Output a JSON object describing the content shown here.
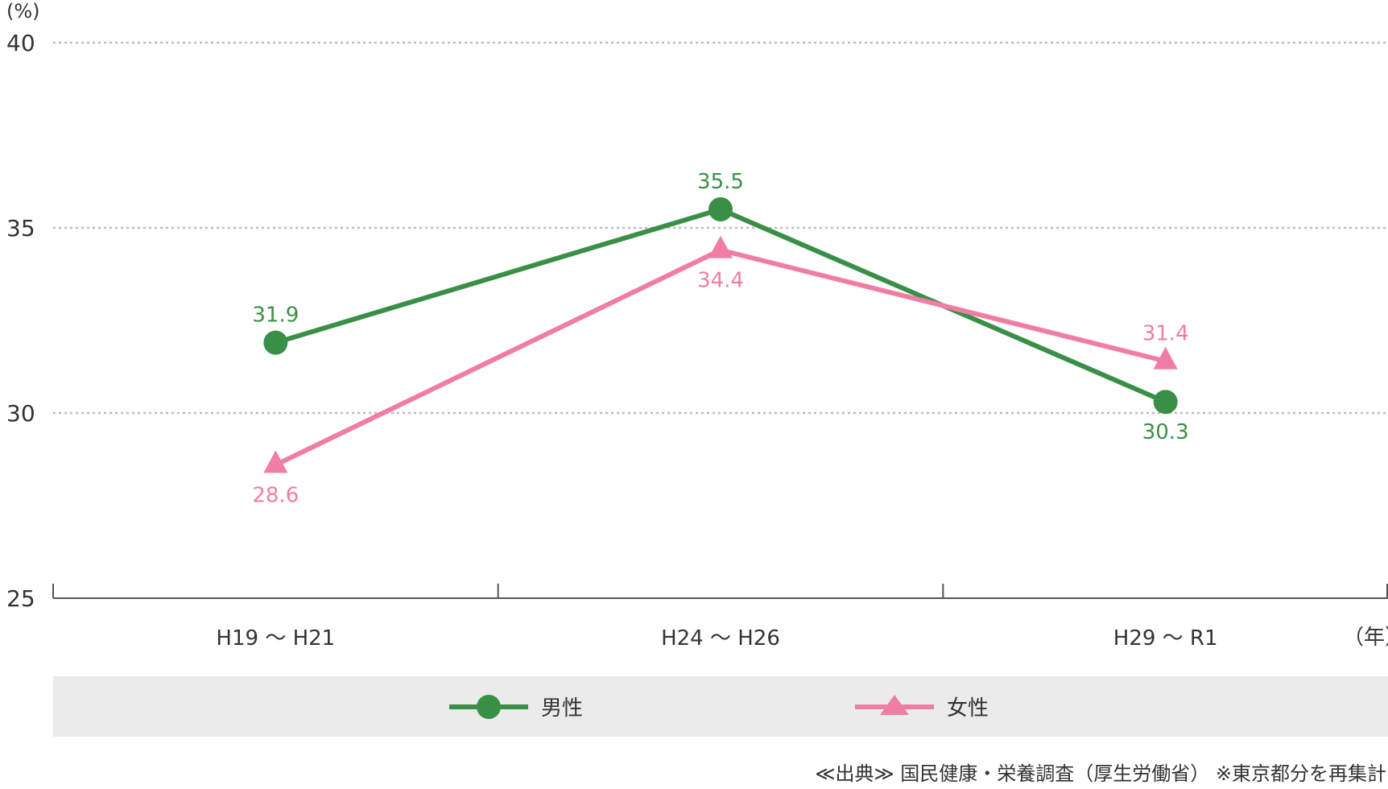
{
  "chart_data": {
    "type": "line",
    "y_unit": "(%)",
    "x_unit": "（年）",
    "ylim": [
      25,
      40
    ],
    "yticks": [
      25,
      30,
      35,
      40
    ],
    "categories": [
      "H19 ～ H21",
      "H24 ～ H26",
      "H29 ～ R1"
    ],
    "grid": "dotted horizontal at 30, 35, 40",
    "series": [
      {
        "name": "男性",
        "values": [
          31.9,
          35.5,
          30.3
        ],
        "color": "#3a8f47",
        "marker": "circle"
      },
      {
        "name": "女性",
        "values": [
          28.6,
          34.4,
          31.4
        ],
        "color": "#f07da5",
        "marker": "triangle"
      }
    ],
    "legend_position": "bottom"
  },
  "legend": {
    "male": "男性",
    "female": "女性"
  },
  "source": "≪出典≫ 国民健康・栄養調査（厚生労働省） ※東京都分を再集計"
}
